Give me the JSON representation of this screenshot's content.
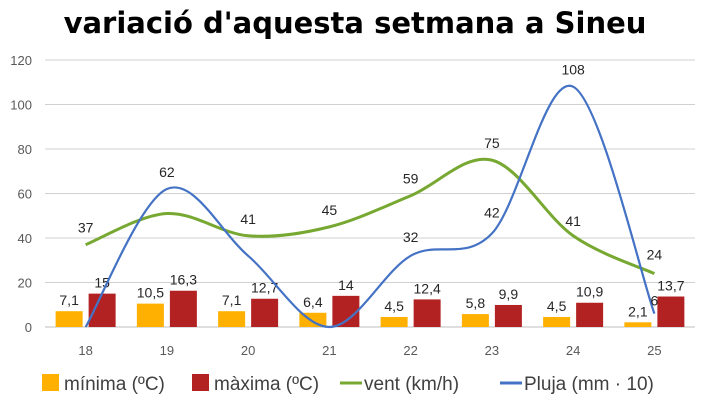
{
  "chart_data": {
    "type": "bar+line",
    "title": "variació d'aquesta setmana a Sineu",
    "categories": [
      "18",
      "19",
      "20",
      "21",
      "22",
      "23",
      "24",
      "25"
    ],
    "ylim": [
      0,
      120
    ],
    "yticks": [
      "0",
      "20",
      "40",
      "60",
      "80",
      "100",
      "120"
    ],
    "grid": true,
    "legend_position": "bottom",
    "series": [
      {
        "name": "mínima (ºC)",
        "kind": "bar",
        "color": "#FFB000",
        "values": [
          7.1,
          10.5,
          7.1,
          6.4,
          4.5,
          5.8,
          4.5,
          2.1
        ],
        "labels": [
          "7,1",
          "10,5",
          "7,1",
          "6,4",
          "4,5",
          "5,8",
          "4,5",
          "2,1"
        ]
      },
      {
        "name": "màxima (ºC)",
        "kind": "bar",
        "color": "#B22222",
        "values": [
          15,
          16.3,
          12.7,
          14,
          12.4,
          9.9,
          10.9,
          13.7
        ],
        "labels": [
          "15",
          "16,3",
          "12,7",
          "14",
          "12,4",
          "9,9",
          "10,9",
          "13,7"
        ]
      },
      {
        "name": "vent (km/h)",
        "kind": "line",
        "color": "#77A832",
        "values": [
          37,
          51,
          41,
          45,
          59,
          75,
          41,
          24
        ],
        "labels": [
          "37",
          null,
          "41",
          "45",
          "59",
          "75",
          "41",
          "24"
        ]
      },
      {
        "name": "Pluja (mm · 10)",
        "kind": "line",
        "color": "#4472C4",
        "values": [
          0,
          62,
          32,
          0,
          32,
          42,
          108,
          6
        ],
        "labels": [
          null,
          "62",
          null,
          null,
          "32",
          "42",
          "108",
          "6"
        ]
      }
    ]
  }
}
